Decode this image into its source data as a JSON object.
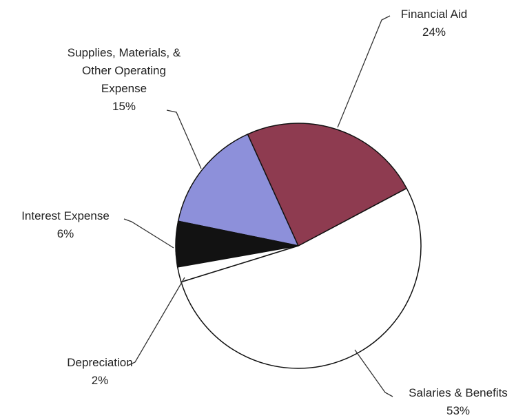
{
  "chart_data": {
    "type": "pie",
    "categories": [
      "Financial Aid",
      "Salaries & Benefits",
      "Depreciation",
      "Interest Expense",
      "Supplies, Materials, & Other Operating Expense"
    ],
    "values": [
      24,
      53,
      2,
      6,
      15
    ],
    "value_labels": [
      "24%",
      "53%",
      "2%",
      "6%",
      "15%"
    ],
    "colors": [
      "#8e3b50",
      "#ffffff",
      "#ffffff",
      "#121212",
      "#8d90da"
    ]
  }
}
